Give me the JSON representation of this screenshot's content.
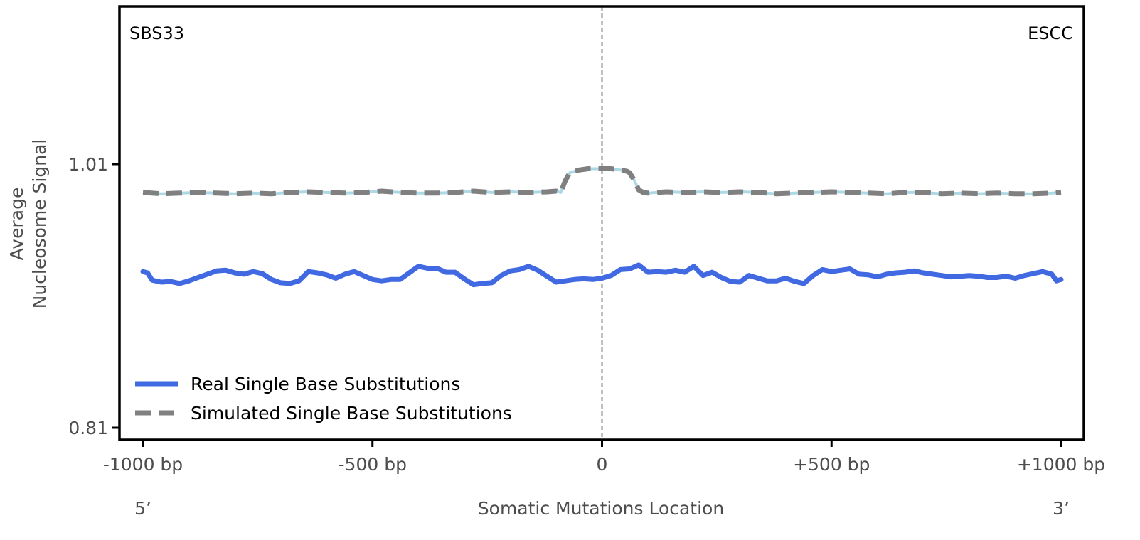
{
  "chart_data": {
    "type": "line",
    "title": "",
    "signature_label": "SBS33",
    "cancer_type_label": "ESCC",
    "xlabel": "Somatic Mutations Location",
    "ylabel_lines": [
      "Average",
      "Nucleosome Signal"
    ],
    "xlim": [
      -1000,
      1000
    ],
    "ylim": [
      0.8,
      1.13
    ],
    "x_ticks": [
      -1000,
      -500,
      0,
      500,
      1000
    ],
    "x_tick_labels": [
      "-1000 bp",
      "-500 bp",
      "0",
      "+500 bp",
      "+1000 bp"
    ],
    "y_ticks": [
      0.81,
      1.01
    ],
    "y_tick_labels": [
      "0.81",
      "1.01"
    ],
    "strand_labels": {
      "left": "5’",
      "right": "3’"
    },
    "center_line_x": 0,
    "legend_position": "lower-left",
    "series": [
      {
        "name": "Real Single Base Substitutions",
        "style": "solid",
        "color": "#4169e1",
        "points": [
          [
            -1000,
            0.9285
          ],
          [
            -990,
            0.9275
          ],
          [
            -980,
            0.922
          ],
          [
            -960,
            0.9205
          ],
          [
            -940,
            0.921
          ],
          [
            -920,
            0.9195
          ],
          [
            -900,
            0.9215
          ],
          [
            -880,
            0.924
          ],
          [
            -860,
            0.9265
          ],
          [
            -840,
            0.929
          ],
          [
            -820,
            0.9295
          ],
          [
            -800,
            0.9275
          ],
          [
            -780,
            0.9265
          ],
          [
            -760,
            0.9285
          ],
          [
            -740,
            0.927
          ],
          [
            -720,
            0.9225
          ],
          [
            -700,
            0.92
          ],
          [
            -680,
            0.9195
          ],
          [
            -660,
            0.9215
          ],
          [
            -640,
            0.9285
          ],
          [
            -620,
            0.9275
          ],
          [
            -600,
            0.926
          ],
          [
            -580,
            0.9235
          ],
          [
            -560,
            0.9265
          ],
          [
            -540,
            0.9285
          ],
          [
            -520,
            0.9255
          ],
          [
            -500,
            0.9225
          ],
          [
            -480,
            0.9215
          ],
          [
            -460,
            0.9225
          ],
          [
            -440,
            0.9225
          ],
          [
            -420,
            0.9275
          ],
          [
            -400,
            0.9325
          ],
          [
            -380,
            0.931
          ],
          [
            -360,
            0.931
          ],
          [
            -340,
            0.928
          ],
          [
            -320,
            0.928
          ],
          [
            -300,
            0.923
          ],
          [
            -280,
            0.9185
          ],
          [
            -260,
            0.9195
          ],
          [
            -240,
            0.92
          ],
          [
            -220,
            0.9255
          ],
          [
            -200,
            0.929
          ],
          [
            -180,
            0.93
          ],
          [
            -160,
            0.9325
          ],
          [
            -140,
            0.9295
          ],
          [
            -120,
            0.925
          ],
          [
            -100,
            0.9205
          ],
          [
            -80,
            0.9215
          ],
          [
            -60,
            0.9225
          ],
          [
            -40,
            0.923
          ],
          [
            -20,
            0.9225
          ],
          [
            0,
            0.9235
          ],
          [
            20,
            0.9255
          ],
          [
            40,
            0.93
          ],
          [
            60,
            0.9305
          ],
          [
            80,
            0.9335
          ],
          [
            100,
            0.928
          ],
          [
            120,
            0.9285
          ],
          [
            140,
            0.928
          ],
          [
            160,
            0.9295
          ],
          [
            180,
            0.928
          ],
          [
            200,
            0.9325
          ],
          [
            220,
            0.9255
          ],
          [
            240,
            0.928
          ],
          [
            260,
            0.924
          ],
          [
            280,
            0.921
          ],
          [
            300,
            0.9205
          ],
          [
            320,
            0.9255
          ],
          [
            340,
            0.9235
          ],
          [
            360,
            0.9215
          ],
          [
            380,
            0.9215
          ],
          [
            400,
            0.9235
          ],
          [
            420,
            0.921
          ],
          [
            440,
            0.9195
          ],
          [
            460,
            0.9255
          ],
          [
            480,
            0.93
          ],
          [
            500,
            0.9285
          ],
          [
            520,
            0.9295
          ],
          [
            540,
            0.9305
          ],
          [
            560,
            0.9265
          ],
          [
            580,
            0.926
          ],
          [
            600,
            0.9245
          ],
          [
            620,
            0.9265
          ],
          [
            640,
            0.9275
          ],
          [
            660,
            0.928
          ],
          [
            680,
            0.929
          ],
          [
            700,
            0.9275
          ],
          [
            720,
            0.9265
          ],
          [
            740,
            0.9255
          ],
          [
            760,
            0.9245
          ],
          [
            780,
            0.925
          ],
          [
            800,
            0.9255
          ],
          [
            820,
            0.925
          ],
          [
            840,
            0.924
          ],
          [
            860,
            0.924
          ],
          [
            880,
            0.925
          ],
          [
            900,
            0.9235
          ],
          [
            920,
            0.9255
          ],
          [
            940,
            0.927
          ],
          [
            960,
            0.9285
          ],
          [
            980,
            0.9265
          ],
          [
            990,
            0.9215
          ],
          [
            1000,
            0.9225
          ]
        ]
      },
      {
        "name": "Simulated Single Base Substitutions",
        "style": "dashed",
        "color": "#808080",
        "underlay_color": "#add8e6",
        "points": [
          [
            -1000,
            0.9885
          ],
          [
            -960,
            0.9875
          ],
          [
            -920,
            0.988
          ],
          [
            -880,
            0.9885
          ],
          [
            -840,
            0.988
          ],
          [
            -800,
            0.9875
          ],
          [
            -760,
            0.988
          ],
          [
            -720,
            0.9875
          ],
          [
            -680,
            0.9885
          ],
          [
            -640,
            0.989
          ],
          [
            -600,
            0.9885
          ],
          [
            -560,
            0.988
          ],
          [
            -520,
            0.9885
          ],
          [
            -500,
            0.989
          ],
          [
            -480,
            0.9895
          ],
          [
            -440,
            0.9885
          ],
          [
            -400,
            0.988
          ],
          [
            -360,
            0.988
          ],
          [
            -320,
            0.9885
          ],
          [
            -280,
            0.9895
          ],
          [
            -240,
            0.9885
          ],
          [
            -200,
            0.989
          ],
          [
            -160,
            0.9885
          ],
          [
            -120,
            0.989
          ],
          [
            -100,
            0.9895
          ],
          [
            -90,
            0.9885
          ],
          [
            -80,
            0.9975
          ],
          [
            -70,
            1.0035
          ],
          [
            -50,
            1.0055
          ],
          [
            -30,
            1.0065
          ],
          [
            0,
            1.0065
          ],
          [
            20,
            1.0065
          ],
          [
            40,
            1.0055
          ],
          [
            55,
            1.0045
          ],
          [
            60,
            1.0035
          ],
          [
            70,
            0.998
          ],
          [
            80,
            0.9905
          ],
          [
            90,
            0.9885
          ],
          [
            100,
            0.988
          ],
          [
            140,
            0.989
          ],
          [
            180,
            0.9885
          ],
          [
            220,
            0.989
          ],
          [
            260,
            0.9885
          ],
          [
            300,
            0.989
          ],
          [
            340,
            0.9885
          ],
          [
            380,
            0.9875
          ],
          [
            420,
            0.988
          ],
          [
            460,
            0.9885
          ],
          [
            500,
            0.989
          ],
          [
            540,
            0.9885
          ],
          [
            580,
            0.988
          ],
          [
            620,
            0.9875
          ],
          [
            660,
            0.9885
          ],
          [
            700,
            0.9885
          ],
          [
            740,
            0.9875
          ],
          [
            780,
            0.988
          ],
          [
            820,
            0.9875
          ],
          [
            860,
            0.988
          ],
          [
            900,
            0.9875
          ],
          [
            940,
            0.9875
          ],
          [
            980,
            0.988
          ],
          [
            1000,
            0.9885
          ]
        ]
      }
    ]
  }
}
